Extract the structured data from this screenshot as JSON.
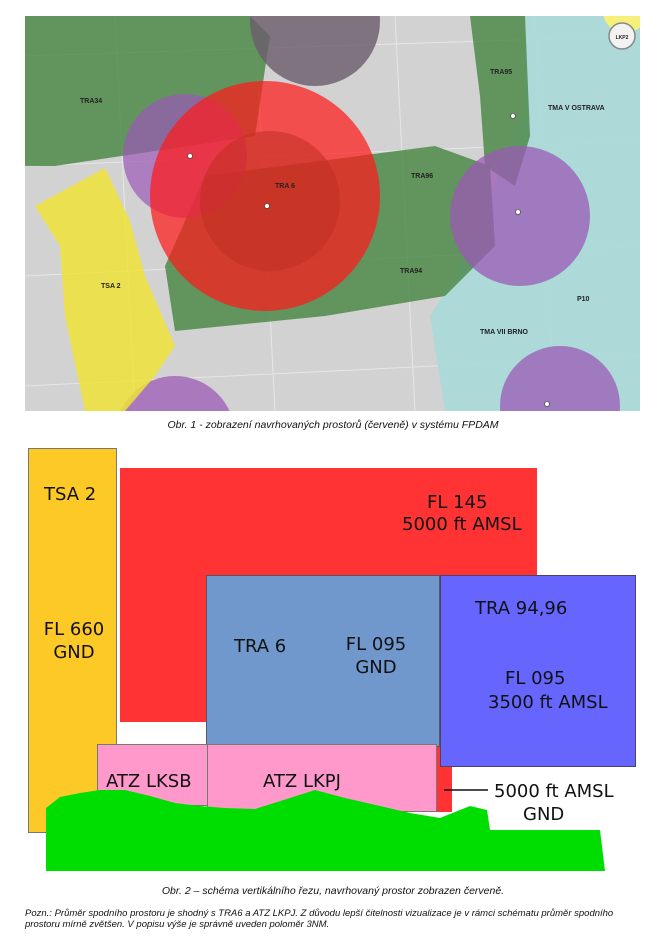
{
  "map": {
    "labels": {
      "tra34": "TRA34",
      "tra95": "TRA95",
      "tma_ostrava": "TMA V OSTRAVA",
      "tra96": "TRA96",
      "tra6": "TRA 6",
      "tsa2": "TSA 2",
      "tra94": "TRA94",
      "p10": "P10",
      "tma_brno": "TMA VII BRNO"
    },
    "compass": "LKP2",
    "colors": {
      "background": "#d2d2d2",
      "tra_green": "#4f8a4a",
      "tma_cyan": "#a9d9d9",
      "atz_purple": "#9b59b6",
      "proposed_red": "#ff1a1a",
      "tsa_yellow": "#f0e33a"
    }
  },
  "caption1": "Obr. 1 - zobrazení navrhovaných prostorů (červeně) v systému FPDAM",
  "diagram": {
    "tsa2": {
      "name": "TSA 2",
      "upper": "FL 660",
      "lower": "GND"
    },
    "proposed": {
      "upper": "FL 145",
      "lower": "5000 ft AMSL"
    },
    "tra6": {
      "name": "TRA 6",
      "upper": "FL 095",
      "lower": "GND"
    },
    "tra9496": {
      "name": "TRA 94,96",
      "upper": "FL 095",
      "lower": "3500 ft AMSL"
    },
    "atz_lksb": "ATZ LKSB",
    "atz_lkpj": "ATZ LKPJ",
    "lower_proposed": {
      "upper": "5000 ft AMSL",
      "lower": "GND"
    },
    "colors": {
      "tsa": "#fcc927",
      "proposed": "#ff3333",
      "tra6": "#7098cc",
      "tra9496": "#6666ff",
      "atz": "#ff99cc",
      "terrain": "#00dd00"
    }
  },
  "caption2": "Obr. 2 – schéma vertikálního řezu, navrhovaný prostor zobrazen červeně.",
  "note": "Pozn.: Průměr spodního prostoru je shodný s TRA6 a ATZ LKPJ. Z důvodu lepší čitelnosti vizualizace je v rámci schématu průměr spodního prostoru mírně zvětšen. V popisu výše je správně uveden poloměr 3NM."
}
